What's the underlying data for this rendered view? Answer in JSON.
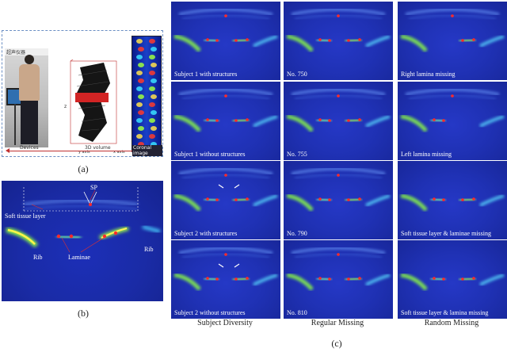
{
  "panel_a": {
    "sign_text": "超声仪器",
    "axis_label_y": "z",
    "axis_label_x1": "y axis",
    "axis_label_x2": "x axis",
    "labels": {
      "devices": "Devices",
      "volume": "3D volume",
      "coronal": "Coronal image"
    },
    "caption": "(a)"
  },
  "panel_b": {
    "labels": {
      "sp": "SP",
      "soft_tissue": "Soft tissue layer",
      "rib_left": "Rib",
      "laminae": "Laminae",
      "rib_right": "Rib"
    },
    "caption": "(b)"
  },
  "panel_c": {
    "rows": [
      [
        "Subject 1 with structures",
        "No. 750",
        "Right lamina missing"
      ],
      [
        "Subject 1 without structures",
        "No. 755",
        "Left lamina missing"
      ],
      [
        "Subject 2 with structures",
        "No. 790",
        "Soft tissue layer & laminae missing"
      ],
      [
        "Subject 2 without structures",
        "No. 810",
        "Soft tissue layer & lamina missing"
      ]
    ],
    "column_titles": [
      "Subject Diversity",
      "Regular Missing",
      "Random Missing"
    ],
    "caption": "(c)"
  },
  "colors": {
    "ultrasound_bg": "#1f31b4",
    "marker": "#ff2a2a",
    "dashed_border": "#6b8fc4"
  }
}
